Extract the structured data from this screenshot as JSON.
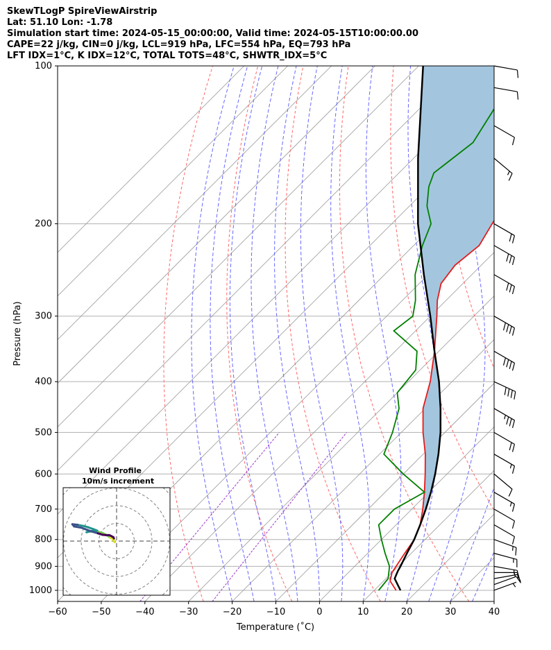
{
  "header": {
    "line1": "SkewTLogP SpireViewAirstrip",
    "line2": "Lat: 51.10   Lon: -1.78",
    "line3": "Simulation start time: 2024-05-15_00:00:00, Valid time: 2024-05-15T10:00:00.00",
    "line4": "CAPE=22 j/kg, CIN=0 j/kg, LCL=919 hPa, LFC=554 hPa, EQ=793 hPa",
    "line5": "LFT IDX=1°C, K IDX=12°C, TOTAL TOTS=48°C, SHWTR_IDX=5°C"
  },
  "chart_data": [
    {
      "type": "line",
      "chart": "skew-T log-P",
      "xlabel": "Temperature (˚C)",
      "ylabel": "Pressure (hPa)",
      "xlim": [
        -60,
        40
      ],
      "ylim_hpa": [
        1050,
        100
      ],
      "x_ticks": [
        -60,
        -50,
        -40,
        -30,
        -20,
        -10,
        0,
        10,
        20,
        30,
        40
      ],
      "x_tick_labels": [
        "−60",
        "−50",
        "−40",
        "−30",
        "−20",
        "−10",
        "0",
        "10",
        "20",
        "30",
        "40"
      ],
      "y_ticks": [
        100,
        200,
        300,
        400,
        500,
        600,
        700,
        800,
        900,
        1000
      ],
      "grid": true,
      "isotherm_colors": "#999999",
      "series": [
        {
          "color": "#e41a1c",
          "points": [
            [
              1000,
              15
            ],
            [
              960,
              11.5
            ],
            [
              925,
              10
            ],
            [
              900,
              9.5
            ],
            [
              850,
              8.5
            ],
            [
              800,
              7.5
            ],
            [
              750,
              5.5
            ],
            [
              700,
              2.5
            ],
            [
              650,
              -1
            ],
            [
              600,
              -5
            ],
            [
              550,
              -9.5
            ],
            [
              500,
              -15
            ],
            [
              450,
              -20.5
            ],
            [
              400,
              -25
            ],
            [
              350,
              -31
            ],
            [
              300,
              -38.5
            ],
            [
              280,
              -42
            ],
            [
              260,
              -45
            ],
            [
              240,
              -46
            ],
            [
              220,
              -45
            ],
            [
              200,
              -47
            ],
            [
              180,
              -49
            ],
            [
              160,
              -52
            ],
            [
              150,
              -54
            ],
            [
              140,
              -57
            ],
            [
              130,
              -58
            ],
            [
              120,
              -57
            ],
            [
              110,
              -62
            ],
            [
              100,
              -68
            ]
          ]
        },
        {
          "color": "#007f00",
          "points": [
            [
              1000,
              11
            ],
            [
              950,
              10.5
            ],
            [
              900,
              8
            ],
            [
              850,
              4
            ],
            [
              800,
              0
            ],
            [
              750,
              -4
            ],
            [
              700,
              -4
            ],
            [
              650,
              -1
            ],
            [
              600,
              -10
            ],
            [
              550,
              -19
            ],
            [
              500,
              -22
            ],
            [
              450,
              -26
            ],
            [
              420,
              -30
            ],
            [
              380,
              -31
            ],
            [
              350,
              -35
            ],
            [
              320,
              -45
            ],
            [
              300,
              -44
            ],
            [
              280,
              -47
            ],
            [
              250,
              -53
            ],
            [
              220,
              -58
            ],
            [
              200,
              -61
            ],
            [
              185,
              -66
            ],
            [
              170,
              -70
            ],
            [
              160,
              -72
            ],
            [
              140,
              -70
            ],
            [
              120,
              -73
            ],
            [
              100,
              -77
            ]
          ]
        },
        {
          "color": "#000000",
          "points": [
            [
              1000,
              16
            ],
            [
              950,
              12
            ],
            [
              919,
              11
            ],
            [
              900,
              10.5
            ],
            [
              850,
              9
            ],
            [
              800,
              7.5
            ],
            [
              750,
              5.5
            ],
            [
              700,
              3.2
            ],
            [
              650,
              0.5
            ],
            [
              600,
              -2.7
            ],
            [
              550,
              -6.5
            ],
            [
              500,
              -11
            ],
            [
              450,
              -16.5
            ],
            [
              400,
              -23
            ],
            [
              350,
              -31
            ],
            [
              300,
              -40
            ],
            [
              250,
              -51
            ],
            [
              200,
              -64
            ],
            [
              150,
              -79
            ],
            [
              100,
              -99
            ]
          ]
        }
      ],
      "cape_fill_color": "#a3c6de",
      "dry_adiabat_color": "#ff6666",
      "moist_adiabat_color": "#6666ff",
      "mixing_ratio_color": "#9933cc",
      "wind_barbs": [
        {
          "p": 1000,
          "speed_kt": 5,
          "dir": 250
        },
        {
          "p": 975,
          "speed_kt": 10,
          "dir": 250
        },
        {
          "p": 950,
          "speed_kt": 10,
          "dir": 260
        },
        {
          "p": 925,
          "speed_kt": 15,
          "dir": 270
        },
        {
          "p": 900,
          "speed_kt": 15,
          "dir": 280
        },
        {
          "p": 850,
          "speed_kt": 15,
          "dir": 285
        },
        {
          "p": 800,
          "speed_kt": 15,
          "dir": 290
        },
        {
          "p": 750,
          "speed_kt": 10,
          "dir": 300
        },
        {
          "p": 700,
          "speed_kt": 10,
          "dir": 300
        },
        {
          "p": 650,
          "speed_kt": 15,
          "dir": 300
        },
        {
          "p": 600,
          "speed_kt": 10,
          "dir": 310
        },
        {
          "p": 550,
          "speed_kt": 15,
          "dir": 300
        },
        {
          "p": 500,
          "speed_kt": 20,
          "dir": 300
        },
        {
          "p": 450,
          "speed_kt": 35,
          "dir": 300
        },
        {
          "p": 400,
          "speed_kt": 40,
          "dir": 295
        },
        {
          "p": 350,
          "speed_kt": 40,
          "dir": 300
        },
        {
          "p": 300,
          "speed_kt": 40,
          "dir": 300
        },
        {
          "p": 250,
          "speed_kt": 30,
          "dir": 300
        },
        {
          "p": 220,
          "speed_kt": 30,
          "dir": 300
        },
        {
          "p": 200,
          "speed_kt": 20,
          "dir": 300
        },
        {
          "p": 150,
          "speed_kt": 15,
          "dir": 310
        },
        {
          "p": 130,
          "speed_kt": 10,
          "dir": 300
        },
        {
          "p": 110,
          "speed_kt": 10,
          "dir": 280
        },
        {
          "p": 100,
          "speed_kt": 10,
          "dir": 280
        }
      ]
    },
    {
      "type": "line",
      "chart": "hodograph",
      "title": "Wind Profile",
      "subtitle": "10m/s increment",
      "ring_count": 3,
      "colormap": [
        "#d9e021",
        "#79c84f",
        "#20928c",
        "#3b528b",
        "#440154"
      ],
      "points": [
        [
          -1.5,
          -0.2
        ],
        [
          -1,
          -0.6
        ],
        [
          -2,
          0.6
        ],
        [
          -1.5,
          1.2
        ],
        [
          -2.6,
          1.5
        ],
        [
          -3.5,
          1.8
        ],
        [
          -4.5,
          2.6
        ],
        [
          -6,
          3.6
        ],
        [
          -8,
          4.6
        ],
        [
          -10.5,
          5.3
        ],
        [
          -13,
          5.6
        ],
        [
          -16,
          5.3
        ],
        [
          -17,
          5.0
        ],
        [
          -14,
          5.7
        ],
        [
          -11,
          5.9
        ],
        [
          -13,
          6.7
        ],
        [
          -16,
          7.8
        ],
        [
          -19,
          8.6
        ],
        [
          -22,
          9.2
        ],
        [
          -25,
          9.5
        ],
        [
          -24,
          8.3
        ],
        [
          -20,
          7.6
        ],
        [
          -17,
          6.5
        ],
        [
          -14,
          5.4
        ],
        [
          -10.5,
          4.4
        ],
        [
          -8,
          3.6
        ],
        [
          -6,
          3.4
        ],
        [
          -4.2,
          3.4
        ],
        [
          -3.3,
          3.0
        ],
        [
          -2.4,
          2.5
        ],
        [
          -1.8,
          2.2
        ],
        [
          -1.5,
          1.5
        ]
      ]
    }
  ]
}
